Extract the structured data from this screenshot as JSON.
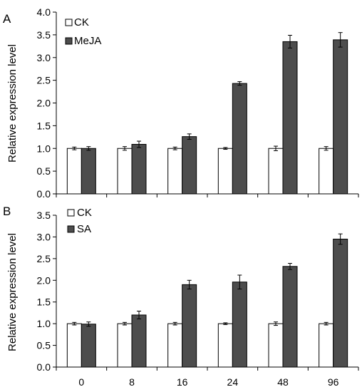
{
  "chart_data": [
    {
      "type": "bar",
      "panel_label": "A",
      "title": "",
      "xlabel": "",
      "ylabel": "Relative expression level",
      "categories": [
        "0",
        "8",
        "16",
        "24",
        "48",
        "96"
      ],
      "ylim": [
        0,
        4.0
      ],
      "yticks": [
        "0.0",
        "0.5",
        "1.0",
        "1.5",
        "2.0",
        "2.5",
        "3.0",
        "3.5",
        "4.0"
      ],
      "legend_position": "top-left",
      "grid": false,
      "series": [
        {
          "name": "CK",
          "color": "#ffffff",
          "values": [
            1.0,
            1.0,
            1.0,
            1.0,
            1.0,
            1.0
          ],
          "errors": [
            0.03,
            0.04,
            0.03,
            0.02,
            0.05,
            0.04
          ]
        },
        {
          "name": "MeJA",
          "color": "#4d4d4d",
          "values": [
            1.0,
            1.09,
            1.26,
            2.43,
            3.35,
            3.39
          ],
          "errors": [
            0.04,
            0.07,
            0.06,
            0.04,
            0.14,
            0.16
          ]
        }
      ]
    },
    {
      "type": "bar",
      "panel_label": "B",
      "title": "",
      "xlabel": "",
      "ylabel": "Relative expression level",
      "categories": [
        "0",
        "8",
        "16",
        "24",
        "48",
        "96"
      ],
      "ylim": [
        0,
        3.5
      ],
      "yticks": [
        "0.0",
        "0.5",
        "1.0",
        "1.5",
        "2.0",
        "2.5",
        "3.0",
        "3.5"
      ],
      "legend_position": "top-left",
      "grid": false,
      "series": [
        {
          "name": "CK",
          "color": "#ffffff",
          "values": [
            1.0,
            1.0,
            1.0,
            1.0,
            1.0,
            1.0
          ],
          "errors": [
            0.03,
            0.03,
            0.03,
            0.02,
            0.04,
            0.03
          ]
        },
        {
          "name": "SA",
          "color": "#4d4d4d",
          "values": [
            0.99,
            1.2,
            1.9,
            1.96,
            2.32,
            2.95
          ],
          "errors": [
            0.05,
            0.09,
            0.1,
            0.16,
            0.07,
            0.12
          ]
        }
      ]
    }
  ]
}
